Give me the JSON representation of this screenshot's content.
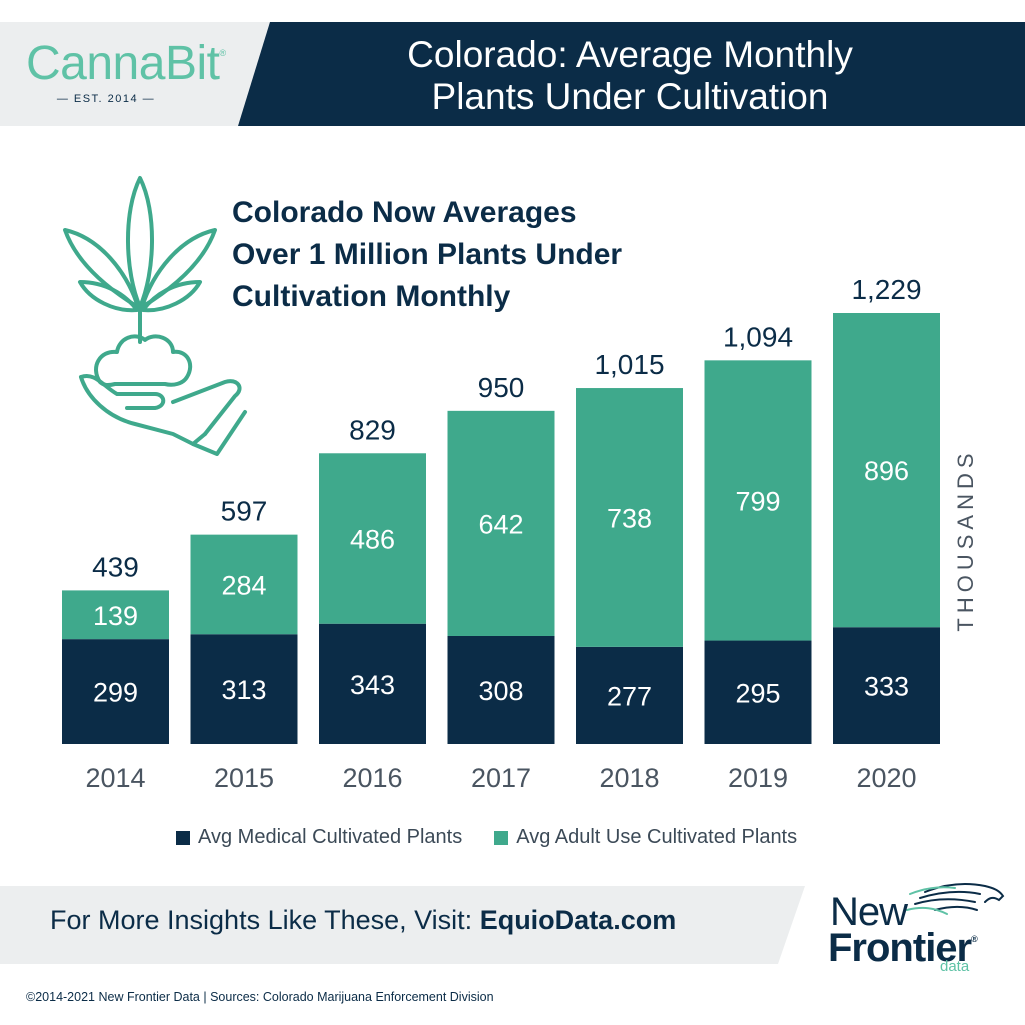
{
  "brand": {
    "name": "CannaBit",
    "mark": "®",
    "est": "— EST. 2014 —"
  },
  "header": {
    "title": "Colorado: Average Monthly\nPlants Under Cultivation"
  },
  "subheading": "Colorado Now Averages\nOver 1 Million Plants Under\nCultivation Monthly",
  "chart_data": {
    "type": "bar",
    "stacked": true,
    "categories": [
      "2014",
      "2015",
      "2016",
      "2017",
      "2018",
      "2019",
      "2020"
    ],
    "series": [
      {
        "name": "Avg Medical Cultivated Plants",
        "values": [
          299,
          313,
          343,
          308,
          277,
          295,
          333
        ],
        "color": "#0b2c47"
      },
      {
        "name": "Avg Adult Use Cultivated Plants",
        "values": [
          139,
          284,
          486,
          642,
          738,
          799,
          896
        ],
        "color": "#3fa98c"
      }
    ],
    "totals": [
      "439",
      "597",
      "829",
      "950",
      "1,015",
      "1,094",
      "1,229"
    ],
    "ylabel": "THOUSANDS",
    "ylim": [
      0,
      1229
    ],
    "legend_position": "bottom",
    "grid": false
  },
  "footer": {
    "cta_prefix": "For More Insights Like These, Visit: ",
    "cta_link": "EquioData.com",
    "logo_line1": "New",
    "logo_line2": "Frontier",
    "logo_mark": "®",
    "logo_line3": "data",
    "copyright": "©2014-2021  New Frontier Data | Sources: Colorado Marijuana Enforcement Division"
  },
  "colors": {
    "navy": "#0b2c47",
    "teal": "#3fa98c",
    "brand_teal": "#5fc2a6",
    "band": "#eceeef"
  }
}
